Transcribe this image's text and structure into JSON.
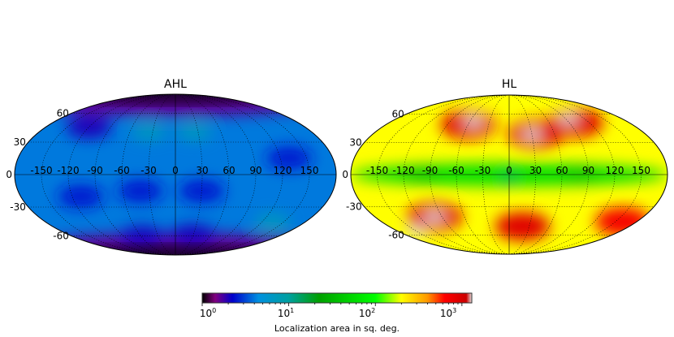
{
  "chart_data": [
    {
      "type": "heatmap",
      "projection": "mollweide",
      "title": "AHL",
      "lon_ticks": [
        "-150",
        "-120",
        "-90",
        "-60",
        "-30",
        "0",
        "30",
        "60",
        "90",
        "120",
        "150"
      ],
      "lat_ticks": [
        "60",
        "30",
        "0",
        "-30",
        "-60"
      ],
      "grid": true,
      "background_value": 4,
      "approx_regions": [
        {
          "lon": 0,
          "lat": 80,
          "value": 1.6
        },
        {
          "lon": 0,
          "lat": -80,
          "value": 1.6
        },
        {
          "lon": -120,
          "lat": 45,
          "value": 2
        },
        {
          "lon": -40,
          "lat": -15,
          "value": 2.5
        },
        {
          "lon": 30,
          "lat": -15,
          "value": 2.5
        },
        {
          "lon": -110,
          "lat": -20,
          "value": 2.5
        },
        {
          "lon": 130,
          "lat": 15,
          "value": 2.5
        },
        {
          "lon": 30,
          "lat": -60,
          "value": 2
        },
        {
          "lon": -60,
          "lat": -62,
          "value": 2
        },
        {
          "lon": -35,
          "lat": 40,
          "value": 7
        },
        {
          "lon": 25,
          "lat": 40,
          "value": 7
        },
        {
          "lon": 135,
          "lat": -45,
          "value": 7
        }
      ]
    },
    {
      "type": "heatmap",
      "projection": "mollweide",
      "title": "HL",
      "lon_ticks": [
        "-150",
        "-120",
        "-90",
        "-60",
        "-30",
        "0",
        "30",
        "60",
        "90",
        "120",
        "150"
      ],
      "lat_ticks": [
        "60",
        "30",
        "0",
        "-30",
        "-60"
      ],
      "grid": true,
      "background_value": 200,
      "approx_regions": [
        {
          "lon": 0,
          "lat": 0,
          "value": 60
        },
        {
          "lon": -100,
          "lat": 0,
          "value": 40
        },
        {
          "lon": 80,
          "lat": 0,
          "value": 40
        },
        {
          "lon": 0,
          "lat": -3,
          "value": 15
        },
        {
          "lon": -60,
          "lat": 48,
          "value": 900
        },
        {
          "lon": -55,
          "lat": 52,
          "value": 1800
        },
        {
          "lon": 35,
          "lat": 38,
          "value": 900
        },
        {
          "lon": 30,
          "lat": 38,
          "value": 1800
        },
        {
          "lon": 100,
          "lat": 50,
          "value": 900
        },
        {
          "lon": 95,
          "lat": 55,
          "value": 1800
        },
        {
          "lon": -100,
          "lat": -40,
          "value": 900
        },
        {
          "lon": -100,
          "lat": -40,
          "value": 1800
        },
        {
          "lon": -150,
          "lat": -55,
          "value": 1800
        },
        {
          "lon": 20,
          "lat": -50,
          "value": 900
        },
        {
          "lon": 160,
          "lat": -45,
          "value": 700
        }
      ]
    }
  ],
  "colorbar": {
    "scale": "log",
    "range": [
      1,
      1300
    ],
    "tick_labels": [
      "10^0",
      "10^1",
      "10^2",
      "10^3"
    ],
    "label": "Localization area in sq. deg.",
    "colors": [
      "#000000",
      "#800080",
      "#0000cc",
      "#0090e0",
      "#00a0a0",
      "#00a000",
      "#00ff00",
      "#ffff00",
      "#ff9900",
      "#ff0000",
      "#cc0000",
      "#e0e0e0"
    ]
  }
}
